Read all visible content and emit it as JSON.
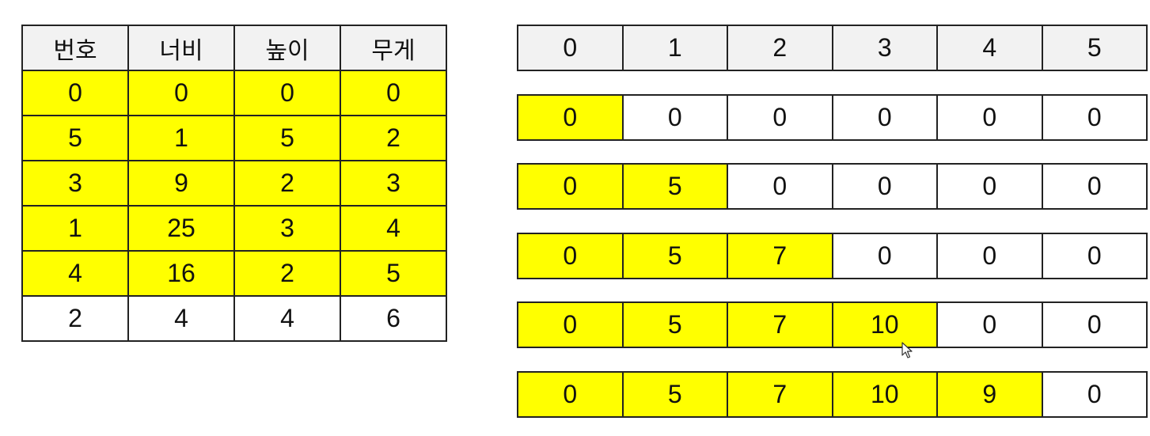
{
  "box_table": {
    "headers": [
      "번호",
      "너비",
      "높이",
      "무게"
    ],
    "rows": [
      {
        "cells": [
          "0",
          "0",
          "0",
          "0"
        ],
        "highlighted": true
      },
      {
        "cells": [
          "5",
          "1",
          "5",
          "2"
        ],
        "highlighted": true
      },
      {
        "cells": [
          "3",
          "9",
          "2",
          "3"
        ],
        "highlighted": true
      },
      {
        "cells": [
          "1",
          "25",
          "3",
          "4"
        ],
        "highlighted": true
      },
      {
        "cells": [
          "4",
          "16",
          "2",
          "5"
        ],
        "highlighted": true
      },
      {
        "cells": [
          "2",
          "4",
          "4",
          "6"
        ],
        "highlighted": false
      }
    ]
  },
  "dp_index_row": [
    "0",
    "1",
    "2",
    "3",
    "4",
    "5"
  ],
  "dp_rows": [
    {
      "values": [
        "0",
        "0",
        "0",
        "0",
        "0",
        "0"
      ],
      "highlighted_count": 1
    },
    {
      "values": [
        "0",
        "5",
        "0",
        "0",
        "0",
        "0"
      ],
      "highlighted_count": 2
    },
    {
      "values": [
        "0",
        "5",
        "7",
        "0",
        "0",
        "0"
      ],
      "highlighted_count": 3
    },
    {
      "values": [
        "0",
        "5",
        "7",
        "10",
        "0",
        "0"
      ],
      "highlighted_count": 4
    },
    {
      "values": [
        "0",
        "5",
        "7",
        "10",
        "9",
        "0"
      ],
      "highlighted_count": 5
    }
  ],
  "colors": {
    "highlight": "#ffff00",
    "header": "#f2f2f2",
    "border": "#222222"
  },
  "icons": {
    "cursor": "mouse-pointer-icon"
  }
}
